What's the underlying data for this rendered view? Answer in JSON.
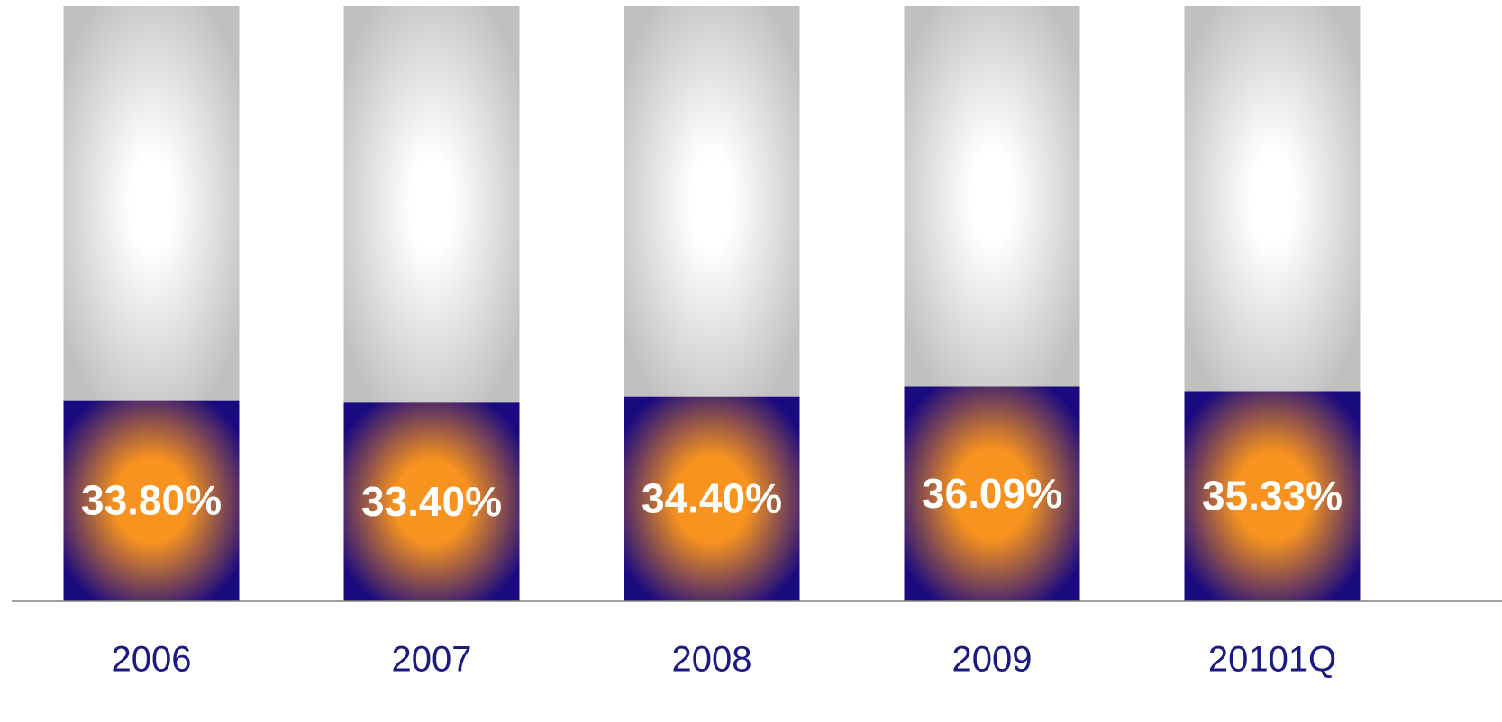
{
  "chart_data": {
    "type": "stacked_bar",
    "categories": [
      "2006",
      "2007",
      "2008",
      "2009",
      "20101Q"
    ],
    "series": [
      {
        "color": "#1a0a80",
        "center_color": "#f7931e",
        "values": [
          33.8,
          33.4,
          34.4,
          36.09,
          35.33
        ],
        "value_labels": [
          "33.80%",
          "33.40%",
          "34.40%",
          "36.09%",
          "35.33%"
        ]
      },
      {
        "color": "#c0c0c0",
        "center_color": "#ffffff",
        "values": [
          66.2,
          66.6,
          65.6,
          63.91,
          64.67
        ]
      }
    ],
    "ylim": [
      0,
      100
    ]
  }
}
